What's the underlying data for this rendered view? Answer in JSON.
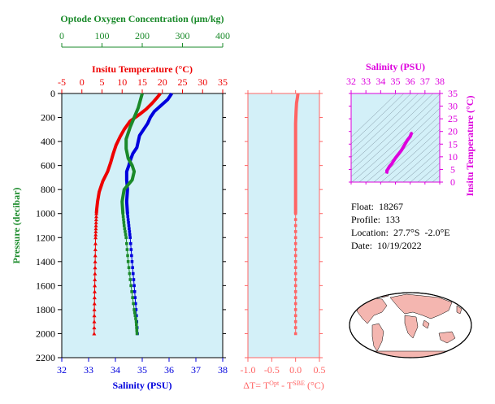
{
  "colors": {
    "oxygen": "#1a8a2a",
    "temperature": "#ee0000",
    "salinity": "#0000dd",
    "delta": "#ff6464",
    "ts_plot": "#dd00dd",
    "panel_bg": "#d3f0f8"
  },
  "info": {
    "float": "Float:  18267",
    "profile": "Profile:  133",
    "location": "Location:  27.7°S  -2.0°E",
    "date": "Date:  10/19/2022"
  },
  "chart_data": [
    {
      "type": "line",
      "name": "profile",
      "y_axis": {
        "label": "Pressure (decibar)",
        "range": [
          0,
          2200
        ],
        "ticks": [
          0,
          200,
          400,
          600,
          800,
          1000,
          1200,
          1400,
          1600,
          1800,
          2000,
          2200
        ],
        "inverted": true
      },
      "axes": {
        "oxygen": {
          "label": "Optode Oxygen Concentration (μm/kg)",
          "range": [
            0,
            400
          ],
          "ticks": [
            0,
            100,
            200,
            300,
            400
          ],
          "position": "top-outer"
        },
        "temperature": {
          "label": "Insitu Temperature (°C)",
          "range": [
            -5,
            35
          ],
          "ticks": [
            -5,
            0,
            5,
            10,
            15,
            20,
            25,
            30,
            35
          ],
          "position": "top"
        },
        "salinity": {
          "label": "Salinity (PSU)",
          "range": [
            32,
            38
          ],
          "ticks": [
            32,
            33,
            34,
            35,
            36,
            37,
            38
          ],
          "position": "bottom"
        }
      },
      "series": [
        {
          "name": "oxygen",
          "axis": "oxygen",
          "points": [
            [
              200,
              0
            ],
            [
              195,
              60
            ],
            [
              190,
              120
            ],
            [
              180,
              200
            ],
            [
              170,
              280
            ],
            [
              160,
              380
            ],
            [
              160,
              460
            ],
            [
              165,
              540
            ],
            [
              175,
              600
            ],
            [
              180,
              650
            ],
            [
              175,
              720
            ],
            [
              155,
              800
            ],
            [
              150,
              900
            ],
            [
              152,
              1000
            ],
            [
              155,
              1100
            ],
            [
              160,
              1200
            ],
            [
              165,
              1400
            ],
            [
              172,
              1600
            ],
            [
              180,
              1800
            ],
            [
              185,
              1900
            ],
            [
              187,
              2000
            ]
          ]
        },
        {
          "name": "temperature",
          "axis": "temperature",
          "points": [
            [
              19.5,
              0
            ],
            [
              18.8,
              30
            ],
            [
              17.5,
              80
            ],
            [
              16,
              130
            ],
            [
              14.5,
              170
            ],
            [
              12,
              230
            ],
            [
              10.5,
              300
            ],
            [
              9.5,
              360
            ],
            [
              8.5,
              430
            ],
            [
              7.8,
              500
            ],
            [
              7.2,
              570
            ],
            [
              6.4,
              650
            ],
            [
              5.2,
              730
            ],
            [
              4.3,
              820
            ],
            [
              3.9,
              900
            ],
            [
              3.7,
              960
            ],
            [
              3.6,
              1000
            ],
            [
              3.5,
              1100
            ],
            [
              3.4,
              1200
            ],
            [
              3.3,
              1400
            ],
            [
              3.2,
              1600
            ],
            [
              3.1,
              1800
            ],
            [
              3.05,
              2000
            ]
          ]
        },
        {
          "name": "salinity",
          "axis": "salinity",
          "points": [
            [
              36.1,
              0
            ],
            [
              35.95,
              50
            ],
            [
              35.7,
              100
            ],
            [
              35.45,
              150
            ],
            [
              35.3,
              200
            ],
            [
              35.2,
              250
            ],
            [
              35.05,
              300
            ],
            [
              34.9,
              350
            ],
            [
              34.85,
              400
            ],
            [
              34.8,
              450
            ],
            [
              34.65,
              500
            ],
            [
              34.55,
              560
            ],
            [
              34.5,
              600
            ],
            [
              34.42,
              650
            ],
            [
              34.42,
              720
            ],
            [
              34.45,
              800
            ],
            [
              34.42,
              900
            ],
            [
              34.45,
              1000
            ],
            [
              34.5,
              1100
            ],
            [
              34.55,
              1200
            ],
            [
              34.62,
              1400
            ],
            [
              34.7,
              1600
            ],
            [
              34.77,
              1800
            ],
            [
              34.82,
              2000
            ]
          ]
        }
      ]
    },
    {
      "type": "line",
      "name": "delta_t",
      "x_axis": {
        "label": "ΔT= T^Opt - T^SBE (°C)",
        "range": [
          -1.0,
          0.5
        ],
        "ticks": [
          -1.0,
          -0.5,
          0.0,
          0.5
        ]
      },
      "y_range": [
        0,
        2200
      ],
      "series": [
        {
          "name": "delta",
          "points": [
            [
              0.05,
              0
            ],
            [
              0.04,
              30
            ],
            [
              0.02,
              80
            ],
            [
              0.01,
              150
            ],
            [
              0.0,
              250
            ],
            [
              0.0,
              400
            ],
            [
              0.0,
              600
            ],
            [
              0.0,
              800
            ],
            [
              0.0,
              1000
            ],
            [
              0.0,
              1200
            ],
            [
              0.0,
              1400
            ],
            [
              0.0,
              1600
            ],
            [
              0.0,
              1800
            ],
            [
              0.0,
              2000
            ]
          ]
        }
      ]
    },
    {
      "type": "scatter",
      "name": "ts_diagram",
      "x_axis": {
        "label": "Salinity (PSU)",
        "range": [
          32,
          38
        ],
        "ticks": [
          32,
          33,
          34,
          35,
          36,
          37,
          38
        ]
      },
      "y_axis": {
        "label": "Insitu Temperature (°C)",
        "range": [
          0,
          35
        ],
        "ticks": [
          0,
          5,
          10,
          15,
          20,
          25,
          30,
          35
        ]
      },
      "series": [
        {
          "name": "ts",
          "points": [
            [
              34.45,
              3.6
            ],
            [
              34.42,
              4.0
            ],
            [
              34.42,
              4.5
            ],
            [
              34.5,
              5.2
            ],
            [
              34.6,
              6.2
            ],
            [
              34.75,
              7.2
            ],
            [
              34.85,
              8.2
            ],
            [
              35.0,
              9.5
            ],
            [
              35.2,
              11.0
            ],
            [
              35.4,
              12.5
            ],
            [
              35.6,
              14.5
            ],
            [
              35.8,
              16.5
            ],
            [
              36.0,
              18.0
            ],
            [
              36.1,
              19.5
            ]
          ]
        }
      ]
    }
  ]
}
